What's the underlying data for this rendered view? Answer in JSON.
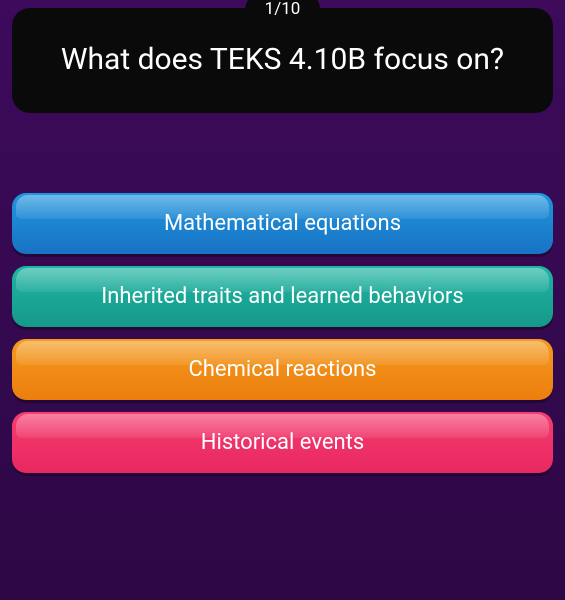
{
  "quiz": {
    "counter": "1/10",
    "question": "What does TEKS 4.10B focus on?",
    "options": [
      {
        "label": "Mathematical equations"
      },
      {
        "label": "Inherited traits and learned behaviors"
      },
      {
        "label": "Chemical reactions"
      },
      {
        "label": "Historical events"
      }
    ],
    "colors": {
      "background_top": "#3d0a5c",
      "background_bottom": "#2d0845",
      "card_bg": "#0a0a0a",
      "text": "#ffffff",
      "option_colors": [
        {
          "top": "#2196dd",
          "bottom": "#1873c4"
        },
        {
          "top": "#1fb5a3",
          "bottom": "#15998a"
        },
        {
          "top": "#f59b1f",
          "bottom": "#ec7e0e"
        },
        {
          "top": "#f53d6f",
          "bottom": "#e82860"
        }
      ]
    },
    "typography": {
      "question_fontsize": 30,
      "option_fontsize": 22,
      "counter_fontsize": 17
    }
  }
}
